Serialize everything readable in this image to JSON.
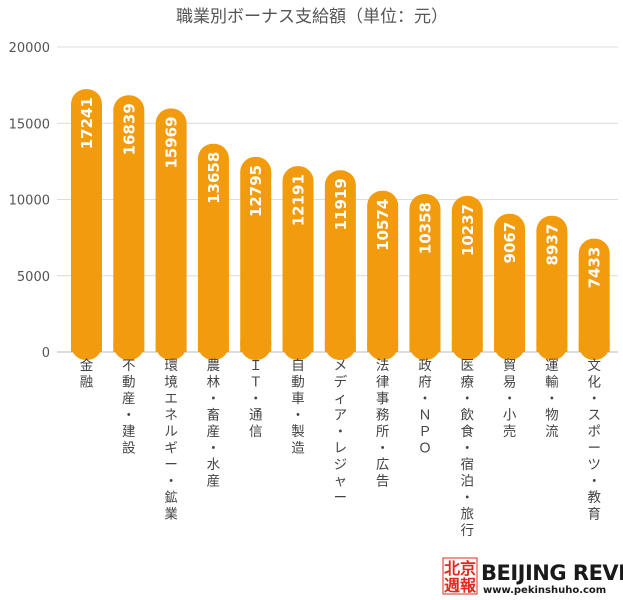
{
  "chart_data": {
    "type": "bar",
    "title": "職業別ボーナス支給額（単位：元）",
    "categories": [
      "金融",
      "不動産・建設",
      "環境エネルギー・鉱業",
      "農林・畜産・水産",
      "ＩＴ・通信",
      "自動車・製造",
      "メディア・レジャー",
      "法律事務所・広告",
      "政府・ＮＰＯ",
      "医療・飲食・宿泊・旅行",
      "貿易・小売",
      "運輸・物流",
      "文化・スポーツ・教育"
    ],
    "values": [
      17241,
      16839,
      15969,
      13658,
      12795,
      12191,
      11919,
      10574,
      10358,
      10237,
      9067,
      8937,
      7433
    ],
    "yticks": [
      "0",
      "5000",
      "10000",
      "15000",
      "20000"
    ],
    "ylim": [
      0,
      20000
    ],
    "grid": true,
    "bar_color": "#f29b0c"
  },
  "branding": {
    "cn_line1": "北京",
    "cn_line2": "週報",
    "name": "BEIJING REVIEW",
    "url": "www.pekinshuho.com"
  }
}
